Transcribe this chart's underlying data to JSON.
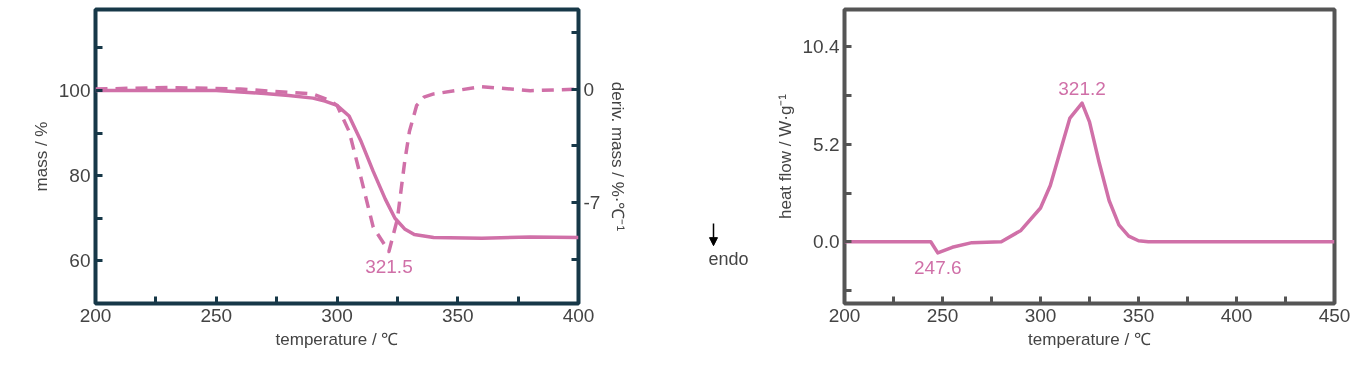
{
  "chart_data": [
    {
      "type": "line",
      "xlabel": "temperature / ℃",
      "ylabel": "mass / %",
      "y2label": "deriv. mass / %·℃⁻¹",
      "xlim": [
        200,
        400
      ],
      "xticks": [
        200,
        {
          "value": 225,
          "label": null
        },
        250,
        {
          "value": 275,
          "label": null
        },
        300,
        {
          "value": 325,
          "label": null
        },
        350,
        {
          "value": 375,
          "label": null
        },
        400
      ],
      "ylim": [
        50,
        119
      ],
      "yticks": [
        60,
        {
          "value": 70,
          "label": null
        },
        80,
        {
          "value": 90,
          "label": null
        },
        100,
        {
          "value": 110,
          "label": null
        }
      ],
      "y2lim": [
        -13.2,
        4.9
      ],
      "y2ticks": [
        {
          "value": -10.5,
          "label": null
        },
        -7,
        {
          "value": -3.5,
          "label": null
        },
        0,
        {
          "value": 3.5,
          "label": null
        }
      ],
      "grid": false,
      "series": [
        {
          "color": "#d070a8",
          "line_style": "solid",
          "x": [
            200,
            250,
            270,
            280,
            290,
            295,
            300,
            305,
            310,
            315,
            320,
            324,
            328,
            332,
            340,
            360,
            380,
            400
          ],
          "values": [
            100,
            100,
            99.3,
            98.8,
            98.2,
            97.5,
            96.5,
            94,
            88,
            81,
            74.5,
            70,
            67.5,
            66.2,
            65.5,
            65.3,
            65.6,
            65.5
          ]
        },
        {
          "color": "#d070a8",
          "line_style": "dashed",
          "axis": "y2",
          "x": [
            200,
            230,
            260,
            290,
            297,
            300,
            305,
            310,
            315,
            321.5,
            325,
            328,
            330,
            333,
            336,
            340,
            360,
            380,
            400
          ],
          "values": [
            0,
            0.1,
            0,
            -0.3,
            -0.7,
            -1.0,
            -2.6,
            -5.5,
            -8.5,
            -10.0,
            -8.0,
            -4.5,
            -2.6,
            -1.0,
            -0.5,
            -0.3,
            0.15,
            -0.1,
            0
          ]
        }
      ],
      "annotations": [
        {
          "text": "321.5",
          "x": 321.5,
          "y": 62.1
        }
      ]
    },
    {
      "type": "line",
      "xlabel": "temperature / ℃",
      "ylabel": "heat flow / W·g⁻¹",
      "xlim": [
        200,
        450
      ],
      "xticks": [
        200,
        {
          "value": 225,
          "label": null
        },
        250,
        {
          "value": 275,
          "label": null
        },
        300,
        {
          "value": 325,
          "label": null
        },
        350,
        {
          "value": 375,
          "label": null
        },
        400,
        {
          "value": 425,
          "label": null
        },
        450
      ],
      "ylim": [
        -3.3,
        12.4
      ],
      "yticks": [
        {
          "value": -2.6,
          "label": null
        },
        {
          "value": 0,
          "label": "0.0"
        },
        {
          "value": 2.6,
          "label": null
        },
        5.2,
        {
          "value": 7.8,
          "label": null
        },
        10.4
      ],
      "grid": false,
      "series": [
        {
          "color": "#d070a8",
          "line_style": "solid",
          "x": [
            200,
            244,
            247.6,
            255,
            265,
            280,
            290,
            300,
            305,
            310,
            315,
            321.2,
            325,
            330,
            335,
            340,
            345,
            350,
            355,
            450
          ],
          "values": [
            0,
            0,
            -0.6,
            -0.3,
            -0.05,
            0,
            0.6,
            1.8,
            3.0,
            4.8,
            6.6,
            7.4,
            6.4,
            4.2,
            2.2,
            0.9,
            0.3,
            0.05,
            0,
            0
          ]
        }
      ],
      "annotations": [
        {
          "text": "321.2",
          "x": 321.2,
          "y": 7.4
        },
        {
          "text": "247.6",
          "x": 247.6,
          "y": -0.6
        },
        "endo"
      ]
    }
  ]
}
